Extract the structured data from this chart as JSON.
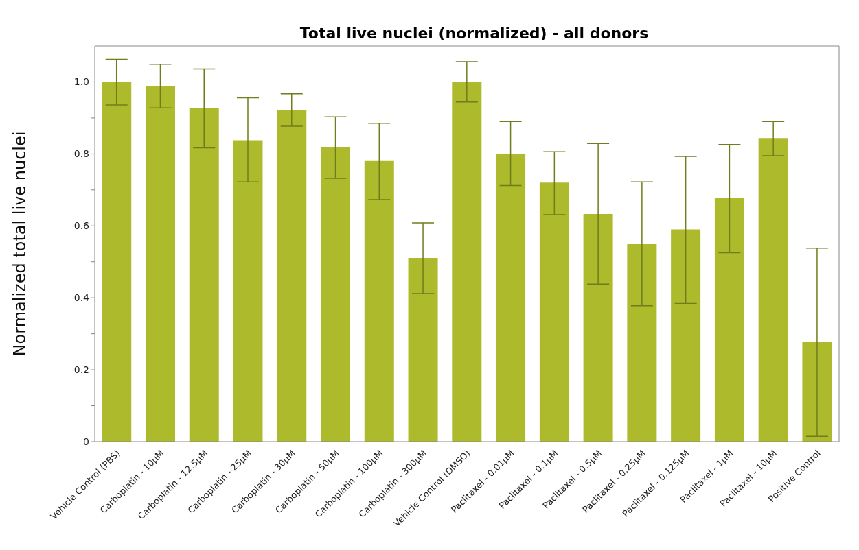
{
  "chart_data": {
    "type": "bar",
    "title": "Total live nuclei (normalized) - all donors",
    "ylabel": "Normalized total live nuclei",
    "categories": [
      "Vehicle Control (PBS)",
      "Carboplatin - 10µM",
      "Carboplatin - 12.5µM",
      "Carboplatin - 25µM",
      "Carboplatin - 30µM",
      "Carboplatin - 50µM",
      "Carboplatin - 100µM",
      "Carboplatin - 300µM",
      "Vehicle Control (DMSO)",
      "Paclitaxel - 0.01µM",
      "Paclitaxel - 0.1µM",
      "Paclitaxel - 0.5µM",
      "Paclitaxel - 0.25µM",
      "Paclitaxel - 0.125µM",
      "Paclitaxel - 1µM",
      "Paclitaxel - 10µM",
      "Positive Control"
    ],
    "values": [
      1.0,
      0.988,
      0.928,
      0.838,
      0.922,
      0.818,
      0.78,
      0.511,
      1.0,
      0.8,
      0.72,
      0.633,
      0.549,
      0.59,
      0.677,
      0.844,
      0.278
    ],
    "errors": [
      [
        0.936,
        1.063
      ],
      [
        0.928,
        1.049
      ],
      [
        0.817,
        1.036
      ],
      [
        0.722,
        0.956
      ],
      [
        0.877,
        0.967
      ],
      [
        0.732,
        0.903
      ],
      [
        0.673,
        0.885
      ],
      [
        0.412,
        0.608
      ],
      [
        0.944,
        1.056
      ],
      [
        0.712,
        0.89
      ],
      [
        0.631,
        0.806
      ],
      [
        0.438,
        0.829
      ],
      [
        0.378,
        0.722
      ],
      [
        0.384,
        0.793
      ],
      [
        0.525,
        0.826
      ],
      [
        0.795,
        0.89
      ],
      [
        0.015,
        0.538
      ]
    ],
    "color": "#adba2c",
    "ylim": [
      0,
      1.1
    ],
    "yticks": [
      0,
      {
        "value": 0.1,
        "label": null
      },
      0.2,
      {
        "value": 0.3,
        "label": null
      },
      0.4,
      {
        "value": 0.5,
        "label": null
      },
      0.6,
      {
        "value": 0.7,
        "label": null
      },
      0.8,
      {
        "value": 0.9,
        "label": null
      },
      {
        "value": 1,
        "label": "1.0"
      }
    ],
    "grid": false,
    "legend": false
  }
}
